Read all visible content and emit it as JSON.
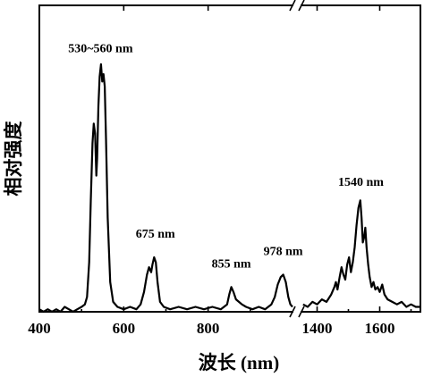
{
  "chart_data": {
    "type": "line",
    "title": "",
    "xlabel": "波长 (nm)",
    "ylabel": "相对强度",
    "x_axis_break": [
      1000,
      1350
    ],
    "xlim_segments": [
      [
        400,
        1000
      ],
      [
        1350,
        1730
      ]
    ],
    "ylim": [
      0,
      1.05
    ],
    "y_ticks_shown": false,
    "x_tick_labels": [
      "400",
      "600",
      "800",
      "1400",
      "1600"
    ],
    "x_ticks": [
      400,
      600,
      800,
      1400,
      1600
    ],
    "annotations": [
      {
        "text": "530~560 nm",
        "x": 545,
        "y": 1.02
      },
      {
        "text": "675 nm",
        "x": 675,
        "y": 0.27
      },
      {
        "text": "855 nm",
        "x": 855,
        "y": 0.15
      },
      {
        "text": "978 nm",
        "x": 978,
        "y": 0.2
      },
      {
        "text": "1540 nm",
        "x": 1540,
        "y": 0.48
      }
    ],
    "series": [
      {
        "values_xy": [
          [
            400,
            0.01
          ],
          [
            410,
            0.0
          ],
          [
            420,
            0.01
          ],
          [
            430,
            0.0
          ],
          [
            440,
            0.01
          ],
          [
            450,
            0.0
          ],
          [
            460,
            0.02
          ],
          [
            470,
            0.01
          ],
          [
            480,
            0.0
          ],
          [
            490,
            0.01
          ],
          [
            500,
            0.02
          ],
          [
            508,
            0.03
          ],
          [
            513,
            0.06
          ],
          [
            518,
            0.2
          ],
          [
            522,
            0.45
          ],
          [
            526,
            0.68
          ],
          [
            529,
            0.76
          ],
          [
            532,
            0.72
          ],
          [
            535,
            0.55
          ],
          [
            537,
            0.62
          ],
          [
            540,
            0.83
          ],
          [
            543,
            0.95
          ],
          [
            546,
            1.0
          ],
          [
            549,
            0.93
          ],
          [
            552,
            0.96
          ],
          [
            555,
            0.91
          ],
          [
            558,
            0.7
          ],
          [
            562,
            0.38
          ],
          [
            568,
            0.12
          ],
          [
            575,
            0.04
          ],
          [
            585,
            0.02
          ],
          [
            600,
            0.01
          ],
          [
            615,
            0.02
          ],
          [
            630,
            0.01
          ],
          [
            640,
            0.03
          ],
          [
            648,
            0.08
          ],
          [
            655,
            0.15
          ],
          [
            660,
            0.18
          ],
          [
            665,
            0.16
          ],
          [
            668,
            0.19
          ],
          [
            672,
            0.22
          ],
          [
            676,
            0.2
          ],
          [
            680,
            0.12
          ],
          [
            686,
            0.04
          ],
          [
            695,
            0.02
          ],
          [
            710,
            0.01
          ],
          [
            730,
            0.02
          ],
          [
            750,
            0.01
          ],
          [
            770,
            0.02
          ],
          [
            790,
            0.01
          ],
          [
            810,
            0.02
          ],
          [
            830,
            0.01
          ],
          [
            845,
            0.03
          ],
          [
            850,
            0.07
          ],
          [
            855,
            0.1
          ],
          [
            860,
            0.08
          ],
          [
            866,
            0.05
          ],
          [
            873,
            0.04
          ],
          [
            880,
            0.03
          ],
          [
            890,
            0.02
          ],
          [
            905,
            0.01
          ],
          [
            920,
            0.02
          ],
          [
            935,
            0.01
          ],
          [
            950,
            0.03
          ],
          [
            958,
            0.06
          ],
          [
            965,
            0.11
          ],
          [
            972,
            0.14
          ],
          [
            978,
            0.15
          ],
          [
            984,
            0.12
          ],
          [
            990,
            0.06
          ],
          [
            995,
            0.03
          ],
          [
            1000,
            0.02
          ]
        ]
      },
      {
        "values_xy": [
          [
            1355,
            0.03
          ],
          [
            1370,
            0.02
          ],
          [
            1385,
            0.04
          ],
          [
            1400,
            0.03
          ],
          [
            1415,
            0.05
          ],
          [
            1430,
            0.04
          ],
          [
            1445,
            0.07
          ],
          [
            1455,
            0.1
          ],
          [
            1460,
            0.12
          ],
          [
            1465,
            0.09
          ],
          [
            1472,
            0.14
          ],
          [
            1478,
            0.18
          ],
          [
            1484,
            0.15
          ],
          [
            1490,
            0.13
          ],
          [
            1496,
            0.19
          ],
          [
            1502,
            0.22
          ],
          [
            1508,
            0.16
          ],
          [
            1514,
            0.2
          ],
          [
            1520,
            0.26
          ],
          [
            1526,
            0.35
          ],
          [
            1532,
            0.42
          ],
          [
            1538,
            0.45
          ],
          [
            1542,
            0.38
          ],
          [
            1546,
            0.28
          ],
          [
            1550,
            0.3
          ],
          [
            1554,
            0.34
          ],
          [
            1558,
            0.26
          ],
          [
            1563,
            0.19
          ],
          [
            1568,
            0.14
          ],
          [
            1574,
            0.1
          ],
          [
            1580,
            0.12
          ],
          [
            1586,
            0.09
          ],
          [
            1593,
            0.1
          ],
          [
            1600,
            0.08
          ],
          [
            1608,
            0.11
          ],
          [
            1615,
            0.07
          ],
          [
            1625,
            0.05
          ],
          [
            1640,
            0.04
          ],
          [
            1655,
            0.03
          ],
          [
            1670,
            0.04
          ],
          [
            1685,
            0.02
          ],
          [
            1700,
            0.03
          ],
          [
            1715,
            0.02
          ],
          [
            1730,
            0.02
          ]
        ]
      }
    ]
  }
}
